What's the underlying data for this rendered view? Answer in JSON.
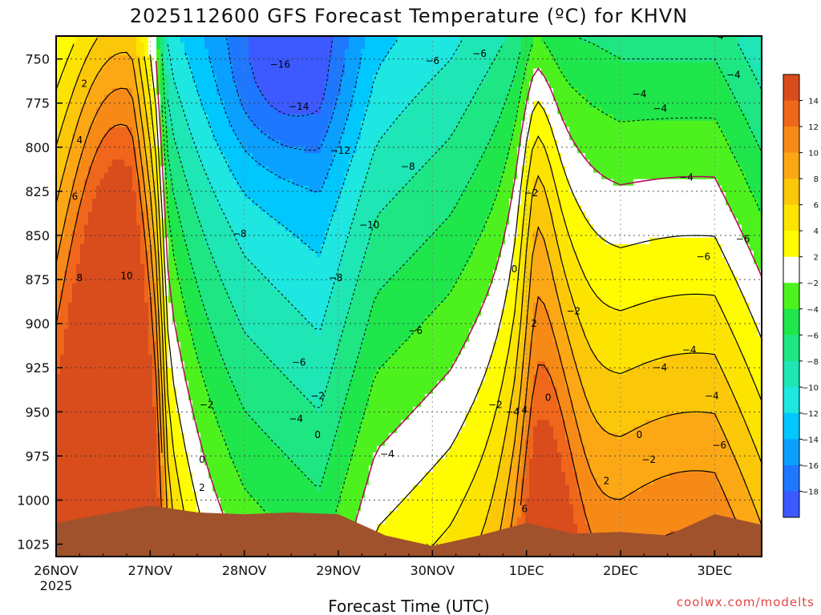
{
  "chart_data": {
    "type": "heatmap",
    "title": "2025112600 GFS Forecast Temperature (ºC) for KHVN",
    "xlabel": "Forecast Time (UTC)",
    "ylabel": "",
    "credit": "coolwx.com/modelts",
    "x_ticks": [
      "26NOV",
      "27NOV",
      "28NOV",
      "29NOV",
      "30NOV",
      "1DEC",
      "2DEC",
      "3DEC"
    ],
    "x_year": "2025",
    "y_ticks": [
      "750",
      "775",
      "800",
      "825",
      "850",
      "875",
      "900",
      "925",
      "950",
      "975",
      "1000",
      "1025"
    ],
    "y_values": [
      750,
      775,
      800,
      825,
      850,
      875,
      900,
      925,
      950,
      975,
      1000,
      1025
    ],
    "ylim": [
      737,
      1032
    ],
    "x_range_days": [
      0,
      7.5
    ],
    "x_start": "26NOV 2025 00Z",
    "colorbar": {
      "labels": [
        "14",
        "12",
        "10",
        "8",
        "6",
        "4",
        "2",
        "−2",
        "−4",
        "−6",
        "−8",
        "−10",
        "−12",
        "−14",
        "−16",
        "−18"
      ],
      "colors": [
        "#d94c1c",
        "#f0661a",
        "#f78a17",
        "#fca815",
        "#fbc709",
        "#fde400",
        "#fffc00",
        "#ffffff",
        "#4df21e",
        "#1ee64b",
        "#1ee682",
        "#1ee6b4",
        "#1ee6e0",
        "#00c8ff",
        "#0aa0ff",
        "#1e78ff",
        "#3c5aff"
      ]
    },
    "surface_pressure_hpa": [
      [
        0.0,
        1013
      ],
      [
        0.5,
        1008
      ],
      [
        1.0,
        1003
      ],
      [
        1.5,
        1007
      ],
      [
        2.0,
        1008
      ],
      [
        2.5,
        1007
      ],
      [
        3.0,
        1008
      ],
      [
        3.5,
        1020
      ],
      [
        4.0,
        1026
      ],
      [
        4.5,
        1020
      ],
      [
        5.0,
        1013
      ],
      [
        5.5,
        1019
      ],
      [
        6.0,
        1018
      ],
      [
        6.5,
        1020
      ],
      [
        7.0,
        1008
      ],
      [
        7.5,
        1014
      ]
    ],
    "contour_labels": [
      {
        "text": "−16",
        "day": 2.38,
        "p": 753
      },
      {
        "text": "−14",
        "day": 2.58,
        "p": 777
      },
      {
        "text": "−12",
        "day": 3.02,
        "p": 802
      },
      {
        "text": "−10",
        "day": 3.33,
        "p": 844
      },
      {
        "text": "−8",
        "day": 1.95,
        "p": 849
      },
      {
        "text": "−8",
        "day": 2.97,
        "p": 874
      },
      {
        "text": "−8",
        "day": 3.74,
        "p": 811
      },
      {
        "text": "−6",
        "day": 4.0,
        "p": 751
      },
      {
        "text": "−6",
        "day": 4.5,
        "p": 747
      },
      {
        "text": "−6",
        "day": 3.82,
        "p": 904
      },
      {
        "text": "−6",
        "day": 2.58,
        "p": 922
      },
      {
        "text": "−6",
        "day": 6.88,
        "p": 862
      },
      {
        "text": "−6",
        "day": 7.3,
        "p": 852
      },
      {
        "text": "−6",
        "day": 7.05,
        "p": 969
      },
      {
        "text": "−4",
        "day": 6.2,
        "p": 770
      },
      {
        "text": "−4",
        "day": 6.42,
        "p": 778
      },
      {
        "text": "−4",
        "day": 7.02,
        "p": 737
      },
      {
        "text": "−4",
        "day": 7.2,
        "p": 759
      },
      {
        "text": "−4",
        "day": 6.7,
        "p": 817
      },
      {
        "text": "−4",
        "day": 6.73,
        "p": 915
      },
      {
        "text": "−4",
        "day": 6.42,
        "p": 925
      },
      {
        "text": "−4",
        "day": 6.97,
        "p": 941
      },
      {
        "text": "−4",
        "day": 2.55,
        "p": 954
      },
      {
        "text": "−4",
        "day": 3.52,
        "p": 974
      },
      {
        "text": "−4",
        "day": 4.85,
        "p": 950
      },
      {
        "text": "−2",
        "day": 1.6,
        "p": 946
      },
      {
        "text": "−2",
        "day": 2.78,
        "p": 941
      },
      {
        "text": "−2",
        "day": 4.67,
        "p": 946
      },
      {
        "text": "−2",
        "day": 5.05,
        "p": 826
      },
      {
        "text": "−2",
        "day": 5.5,
        "p": 893
      },
      {
        "text": "−2",
        "day": 6.3,
        "p": 977
      },
      {
        "text": "0",
        "day": 1.55,
        "p": 977
      },
      {
        "text": "0",
        "day": 2.78,
        "p": 963
      },
      {
        "text": "0",
        "day": 4.87,
        "p": 869
      },
      {
        "text": "0",
        "day": 5.23,
        "p": 942
      },
      {
        "text": "0",
        "day": 6.2,
        "p": 963
      },
      {
        "text": "2",
        "day": 0.3,
        "p": 764
      },
      {
        "text": "2",
        "day": 1.55,
        "p": 993
      },
      {
        "text": "2",
        "day": 5.08,
        "p": 900
      },
      {
        "text": "2",
        "day": 5.85,
        "p": 989
      },
      {
        "text": "4",
        "day": 0.25,
        "p": 796
      },
      {
        "text": "4",
        "day": 4.98,
        "p": 949
      },
      {
        "text": "6",
        "day": 0.2,
        "p": 828
      },
      {
        "text": "6",
        "day": 4.98,
        "p": 1005
      },
      {
        "text": "8",
        "day": 0.25,
        "p": 874
      },
      {
        "text": "10",
        "day": 0.75,
        "p": 873
      }
    ]
  }
}
